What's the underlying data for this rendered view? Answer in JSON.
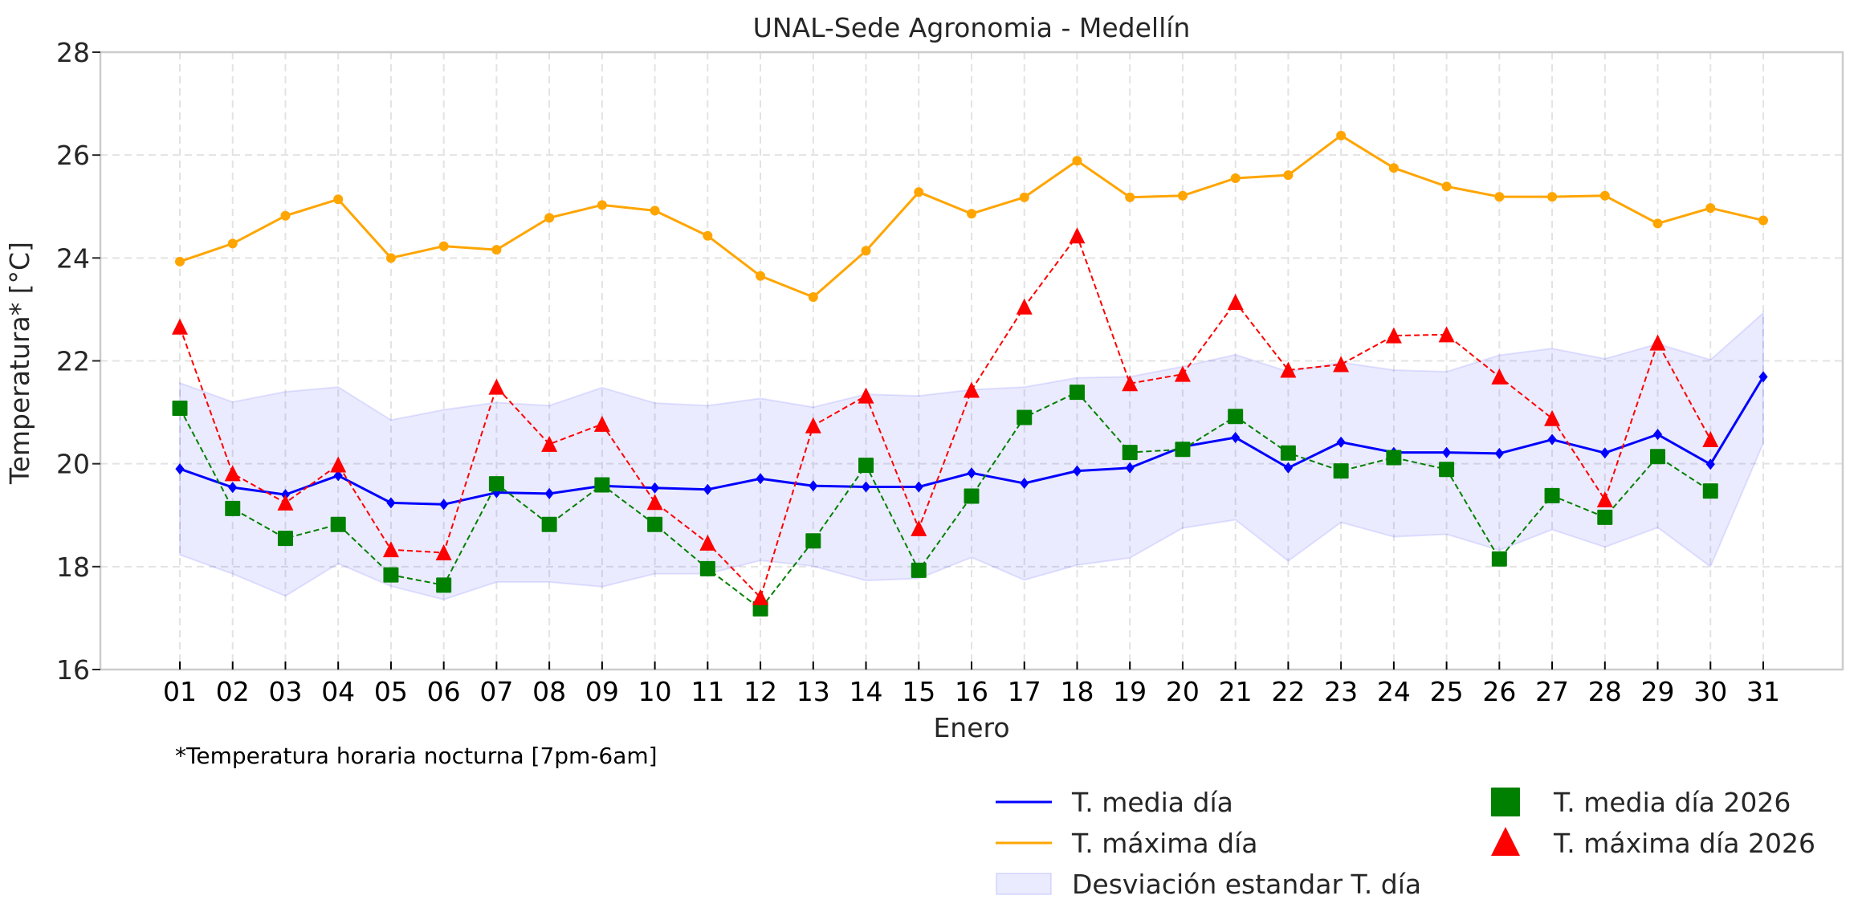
{
  "chart_data": {
    "type": "line",
    "title": "UNAL-Sede Agronomia - Medellín",
    "xlabel": "Enero",
    "ylabel": "Temperatura* [°C]",
    "note": "*Temperatura horaria nocturna [7pm-6am]",
    "ylim": [
      16,
      28
    ],
    "yticks": [
      "16",
      "18",
      "20",
      "22",
      "24",
      "26",
      "28"
    ],
    "ytick_values": [
      16,
      18,
      20,
      22,
      24,
      26,
      28
    ],
    "categories": [
      "01",
      "02",
      "03",
      "04",
      "05",
      "06",
      "07",
      "08",
      "09",
      "10",
      "11",
      "12",
      "13",
      "14",
      "15",
      "16",
      "17",
      "18",
      "19",
      "20",
      "21",
      "22",
      "23",
      "24",
      "25",
      "26",
      "27",
      "28",
      "29",
      "30",
      "31"
    ],
    "grid": true,
    "legend_position": "bottom-right",
    "series": [
      {
        "name": "T. media día",
        "color": "#0000ff",
        "style": "solid",
        "marker": "diamond",
        "values": [
          19.9,
          19.54,
          19.4,
          19.77,
          19.24,
          19.21,
          19.44,
          19.42,
          19.57,
          19.53,
          19.5,
          19.71,
          19.57,
          19.55,
          19.55,
          19.82,
          19.62,
          19.86,
          19.92,
          20.33,
          20.51,
          19.92,
          20.42,
          20.22,
          20.22,
          20.2,
          20.47,
          20.21,
          20.57,
          19.99,
          21.69
        ]
      },
      {
        "name": "T. máxima día",
        "color": "#ffa500",
        "style": "solid",
        "marker": "circle",
        "values": [
          23.93,
          24.28,
          24.82,
          25.14,
          24.0,
          24.23,
          24.16,
          24.78,
          25.03,
          24.92,
          24.43,
          23.65,
          23.24,
          24.14,
          25.28,
          24.86,
          25.18,
          25.89,
          25.18,
          25.21,
          25.55,
          25.61,
          26.38,
          25.75,
          25.39,
          25.19,
          25.19,
          25.21,
          24.67,
          24.97,
          24.73
        ]
      },
      {
        "name": "T. media día 2026",
        "color": "#008000",
        "style": "dashed",
        "marker": "square",
        "values": [
          21.08,
          19.13,
          18.55,
          18.82,
          17.84,
          17.64,
          19.61,
          18.82,
          19.59,
          18.82,
          17.96,
          17.18,
          18.5,
          19.97,
          17.93,
          19.37,
          20.9,
          21.39,
          20.22,
          20.28,
          20.92,
          20.21,
          19.86,
          20.12,
          19.89,
          18.15,
          19.38,
          18.96,
          20.14,
          19.47,
          null
        ]
      },
      {
        "name": "T. máxima día 2026",
        "color": "#ff0000",
        "style": "dashed",
        "marker": "triangle",
        "values": [
          22.66,
          19.81,
          19.24,
          19.98,
          18.33,
          18.27,
          21.49,
          20.38,
          20.77,
          19.25,
          18.46,
          17.4,
          20.74,
          21.32,
          18.74,
          21.43,
          23.05,
          24.43,
          21.56,
          21.74,
          23.14,
          21.82,
          21.93,
          22.49,
          22.51,
          21.69,
          20.88,
          19.3,
          22.35,
          20.47,
          null
        ]
      }
    ],
    "band": {
      "name": "Desviación estandar T. día",
      "color": "#0000ff",
      "upper": [
        21.57,
        21.2,
        21.4,
        21.49,
        20.85,
        21.05,
        21.19,
        21.13,
        21.48,
        21.18,
        21.13,
        21.27,
        21.1,
        21.35,
        21.32,
        21.44,
        21.49,
        21.67,
        21.69,
        21.89,
        22.12,
        21.79,
        21.97,
        21.82,
        21.79,
        22.11,
        22.24,
        22.04,
        22.33,
        22.02,
        22.93
      ],
      "lower": [
        18.23,
        17.86,
        17.43,
        18.06,
        17.62,
        17.36,
        17.7,
        17.7,
        17.61,
        17.86,
        17.86,
        18.12,
        18.01,
        17.73,
        17.77,
        18.18,
        17.74,
        18.03,
        18.17,
        18.75,
        18.91,
        18.11,
        18.86,
        18.58,
        18.63,
        18.32,
        18.72,
        18.38,
        18.76,
        18.0,
        20.4
      ]
    },
    "legend": [
      {
        "label": "T. media día",
        "kind": "line",
        "color": "#0000ff"
      },
      {
        "label": "T. máxima día",
        "kind": "line",
        "color": "#ffa500"
      },
      {
        "label": "Desviación estandar T. día",
        "kind": "patch",
        "color": "#0000ff"
      },
      {
        "label": "T. media día 2026",
        "kind": "square",
        "color": "#008000"
      },
      {
        "label": "T. máxima día 2026",
        "kind": "triangle",
        "color": "#ff0000"
      }
    ]
  }
}
